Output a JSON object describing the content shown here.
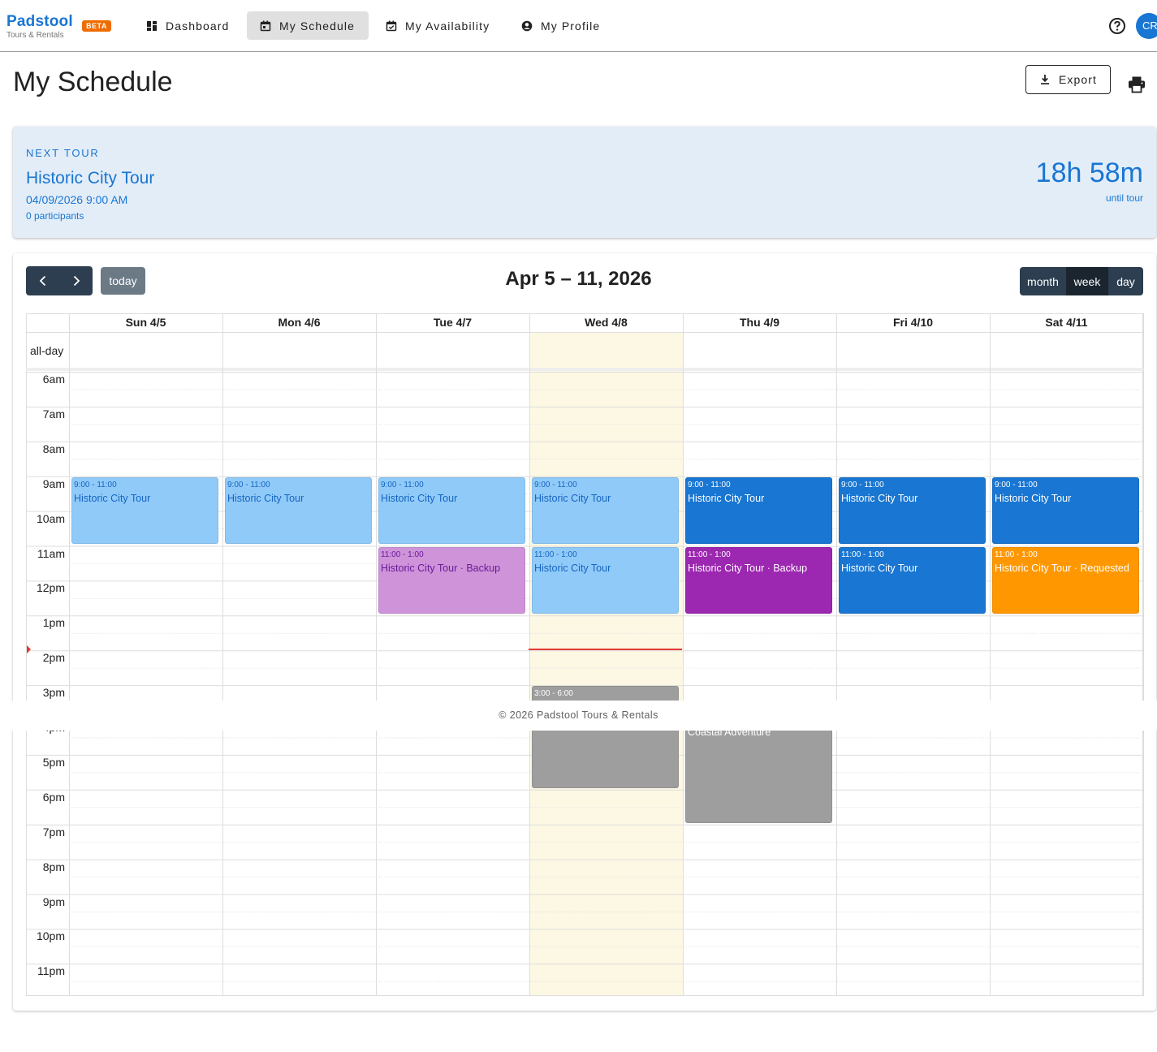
{
  "brand": {
    "name": "Padstool",
    "badge": "BETA",
    "subtitle": "Tours & Rentals"
  },
  "nav": [
    {
      "label": "Dashboard",
      "icon": "dashboard-icon",
      "active": false
    },
    {
      "label": "My Schedule",
      "icon": "calendar-icon",
      "active": true
    },
    {
      "label": "My Availability",
      "icon": "calendar-check-icon",
      "active": false
    },
    {
      "label": "My Profile",
      "icon": "account-circle-icon",
      "active": false
    }
  ],
  "user": {
    "initials": "CR"
  },
  "page": {
    "title": "My Schedule",
    "export_label": "Export"
  },
  "next_tour": {
    "label": "NEXT TOUR",
    "name": "Historic City Tour",
    "datetime": "04/09/2026 9:00 AM",
    "participants": "0 participants",
    "countdown": "18h 58m",
    "countdown_suffix": "until tour"
  },
  "calendar": {
    "title": "Apr 5 – 11, 2026",
    "today_label": "today",
    "views": [
      "month",
      "week",
      "day"
    ],
    "active_view": "week",
    "allday_label": "all-day",
    "days": [
      "Sun 4/5",
      "Mon 4/6",
      "Tue 4/7",
      "Wed 4/8",
      "Thu 4/9",
      "Fri 4/10",
      "Sat 4/11"
    ],
    "today_index": 3,
    "hours": [
      "6am",
      "7am",
      "8am",
      "9am",
      "10am",
      "11am",
      "12pm",
      "1pm",
      "2pm",
      "3pm",
      "4pm",
      "5pm",
      "6pm",
      "7pm",
      "8pm",
      "9pm",
      "10pm",
      "11pm"
    ],
    "events": [
      {
        "day": 0,
        "start": 9,
        "end": 11,
        "time": "9:00 - 11:00",
        "title": "Historic City Tour",
        "bg": "#90caf9",
        "fg": "#1565c0"
      },
      {
        "day": 1,
        "start": 9,
        "end": 11,
        "time": "9:00 - 11:00",
        "title": "Historic City Tour",
        "bg": "#90caf9",
        "fg": "#1565c0"
      },
      {
        "day": 2,
        "start": 9,
        "end": 11,
        "time": "9:00 - 11:00",
        "title": "Historic City Tour",
        "bg": "#90caf9",
        "fg": "#1565c0"
      },
      {
        "day": 2,
        "start": 11,
        "end": 13,
        "time": "11:00 - 1:00",
        "title": "Historic City Tour · Backup",
        "bg": "#ce93d8",
        "fg": "#6a1b9a"
      },
      {
        "day": 3,
        "start": 9,
        "end": 11,
        "time": "9:00 - 11:00",
        "title": "Historic City Tour",
        "bg": "#90caf9",
        "fg": "#1565c0"
      },
      {
        "day": 3,
        "start": 11,
        "end": 13,
        "time": "11:00 - 1:00",
        "title": "Historic City Tour",
        "bg": "#90caf9",
        "fg": "#1565c0"
      },
      {
        "day": 3,
        "start": 15,
        "end": 18,
        "time": "3:00 - 6:00",
        "title": "Coastal Adventure",
        "bg": "#9e9e9e",
        "fg": "#ffffff"
      },
      {
        "day": 4,
        "start": 9,
        "end": 11,
        "time": "9:00 - 11:00",
        "title": "Historic City Tour",
        "bg": "#1976d2",
        "fg": "#ffffff"
      },
      {
        "day": 4,
        "start": 11,
        "end": 13,
        "time": "11:00 - 1:00",
        "title": "Historic City Tour · Backup",
        "bg": "#9c27b0",
        "fg": "#ffffff"
      },
      {
        "day": 4,
        "start": 16,
        "end": 19,
        "time": "",
        "title": "Coastal Adventure",
        "bg": "#9e9e9e",
        "fg": "#ffffff"
      },
      {
        "day": 5,
        "start": 9,
        "end": 11,
        "time": "9:00 - 11:00",
        "title": "Historic City Tour",
        "bg": "#1976d2",
        "fg": "#ffffff"
      },
      {
        "day": 5,
        "start": 11,
        "end": 13,
        "time": "11:00 - 1:00",
        "title": "Historic City Tour",
        "bg": "#1976d2",
        "fg": "#ffffff"
      },
      {
        "day": 6,
        "start": 9,
        "end": 11,
        "time": "9:00 - 11:00",
        "title": "Historic City Tour",
        "bg": "#1976d2",
        "fg": "#ffffff"
      },
      {
        "day": 6,
        "start": 11,
        "end": 13,
        "time": "11:00 - 1:00",
        "title": "Historic City Tour · Requested",
        "bg": "#ff9800",
        "fg": "#ffffff"
      }
    ],
    "now_hour": 14
  },
  "footer": {
    "text": "© 2026 Padstool Tours & Rentals"
  },
  "colors": {
    "primary": "#1976d2",
    "beta": "#ef6c00",
    "today_column": "#fcf8e3",
    "toolbar": "#2c3e50",
    "now_line": "#e53935"
  }
}
